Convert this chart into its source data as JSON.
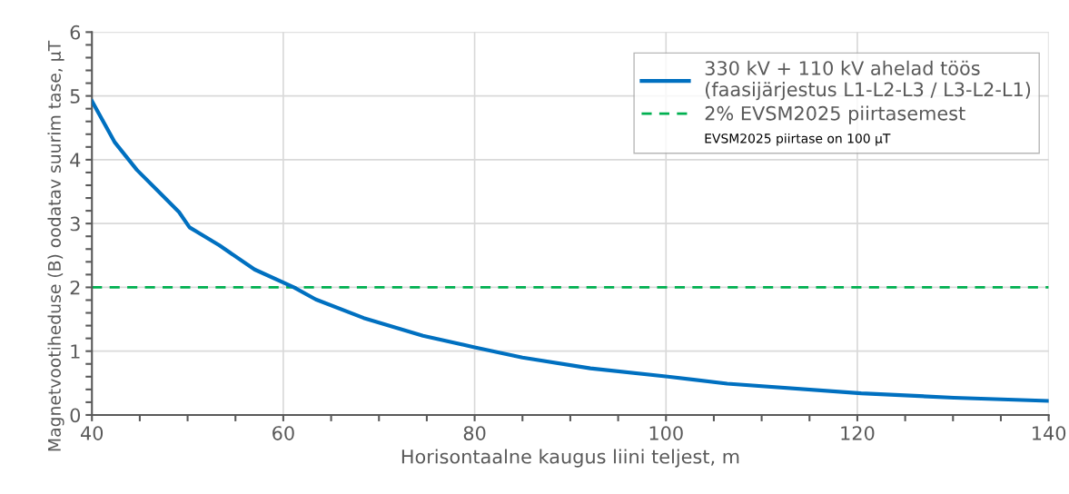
{
  "chart_data": {
    "type": "line",
    "xlabel": "Horisontaalne kaugus liini teljest, m",
    "ylabel": "Magnetvootiheduse (B) oodatav suurim tase, µT",
    "xlim": [
      40,
      140
    ],
    "ylim": [
      0,
      6
    ],
    "xticks": [
      40,
      {
        "value": 45,
        "label": null
      },
      {
        "value": 50,
        "label": null
      },
      {
        "value": 55,
        "label": null
      },
      60,
      {
        "value": 65,
        "label": null
      },
      {
        "value": 70,
        "label": null
      },
      {
        "value": 75,
        "label": null
      },
      80,
      {
        "value": 85,
        "label": null
      },
      {
        "value": 90,
        "label": null
      },
      {
        "value": 95,
        "label": null
      },
      100,
      {
        "value": 105,
        "label": null
      },
      {
        "value": 110,
        "label": null
      },
      {
        "value": 115,
        "label": null
      },
      120,
      {
        "value": 125,
        "label": null
      },
      {
        "value": 130,
        "label": null
      },
      {
        "value": 135,
        "label": null
      },
      140
    ],
    "yticks": [
      0,
      {
        "value": 0.2,
        "label": null
      },
      {
        "value": 0.4,
        "label": null
      },
      {
        "value": 0.6,
        "label": null
      },
      {
        "value": 0.8,
        "label": null
      },
      1,
      {
        "value": 1.2,
        "label": null
      },
      {
        "value": 1.4,
        "label": null
      },
      {
        "value": 1.6,
        "label": null
      },
      {
        "value": 1.8,
        "label": null
      },
      2,
      {
        "value": 2.2,
        "label": null
      },
      {
        "value": 2.4,
        "label": null
      },
      {
        "value": 2.6,
        "label": null
      },
      {
        "value": 2.8,
        "label": null
      },
      3,
      {
        "value": 3.2,
        "label": null
      },
      {
        "value": 3.4,
        "label": null
      },
      {
        "value": 3.6,
        "label": null
      },
      {
        "value": 3.8,
        "label": null
      },
      4,
      {
        "value": 4.2,
        "label": null
      },
      {
        "value": 4.4,
        "label": null
      },
      {
        "value": 4.6,
        "label": null
      },
      {
        "value": 4.8,
        "label": null
      },
      5,
      {
        "value": 5.2,
        "label": null
      },
      {
        "value": 5.4,
        "label": null
      },
      {
        "value": 5.6,
        "label": null
      },
      {
        "value": 5.8,
        "label": null
      },
      6
    ],
    "grid": true,
    "legend": "top right",
    "marker": "none",
    "line_style": "solid",
    "series": [
      {
        "name": "330 kV + 110 kV ahelad töös\n(faasijärjestus L1-L2-L3 / L3-L2-L1)",
        "color": "#0070c0",
        "x": [
          40,
          42.4,
          44.7,
          46.9,
          49.1,
          50.2,
          53.3,
          57,
          61.1,
          63.4,
          68.4,
          74.6,
          80,
          85,
          92.1,
          100.2,
          106.4,
          120.4,
          130.1,
          140
        ],
        "values": [
          4.92,
          4.27,
          3.84,
          3.51,
          3.18,
          2.94,
          2.66,
          2.28,
          2.0,
          1.81,
          1.52,
          1.24,
          1.06,
          0.9,
          0.73,
          0.6,
          0.49,
          0.34,
          0.27,
          0.22
        ]
      }
    ],
    "ref_lines": [
      {
        "axis": "y",
        "value": 2,
        "label": "2% EVSM2025 piirtasemest",
        "color": "#00b050",
        "line_style": "dashed"
      }
    ],
    "annotations": [
      "EVSM2025 piirtase on 100 µT"
    ]
  }
}
